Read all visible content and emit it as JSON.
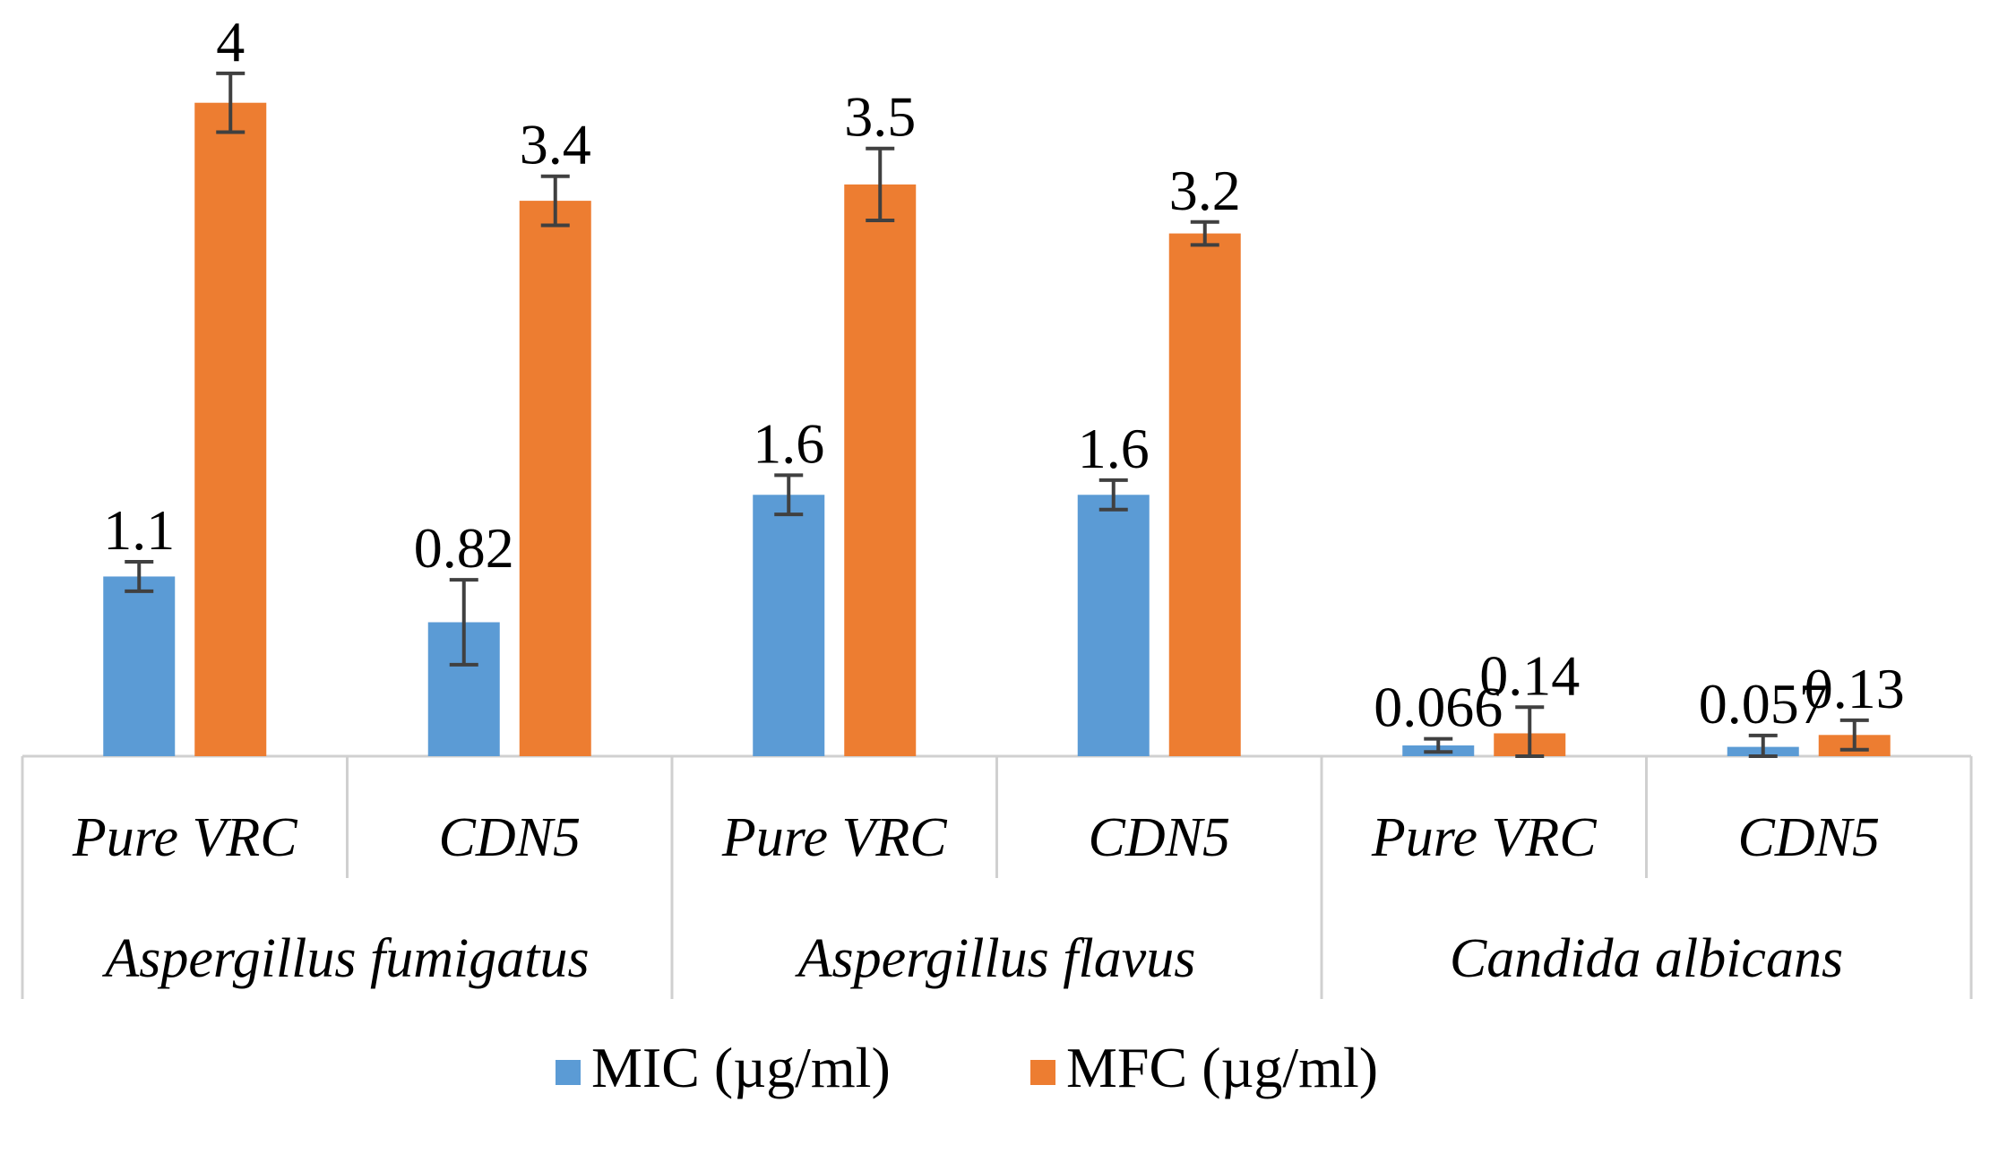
{
  "chart_data": {
    "type": "bar",
    "title": "",
    "xlabel": "",
    "ylabel": "",
    "ylim": [
      0,
      4.3
    ],
    "groups": [
      {
        "label": "Aspergillus fumigatus",
        "categories": [
          "Pure VRC",
          "CDN5"
        ]
      },
      {
        "label": "Aspergillus flavus",
        "categories": [
          "Pure VRC",
          "CDN5"
        ]
      },
      {
        "label": "Candida albicans",
        "categories": [
          "Pure VRC",
          "CDN5"
        ]
      }
    ],
    "series": [
      {
        "name": "MIC (µg/ml)",
        "color": "#5B9BD5",
        "values": [
          1.1,
          0.82,
          1.6,
          1.6,
          0.066,
          0.057
        ],
        "labels": [
          "1.1",
          "0.82",
          "1.6",
          "1.6",
          "0.066",
          "0.057"
        ],
        "errors": [
          0.09,
          0.26,
          0.12,
          0.09,
          0.04,
          0.07
        ]
      },
      {
        "name": "MFC (µg/ml)",
        "color": "#ED7D31",
        "values": [
          4,
          3.4,
          3.5,
          3.2,
          0.14,
          0.13
        ],
        "labels": [
          "4",
          "3.4",
          "3.5",
          "3.2",
          "0.14",
          "0.13"
        ],
        "errors": [
          0.18,
          0.15,
          0.22,
          0.07,
          0.16,
          0.09
        ]
      }
    ],
    "legend": "bottom"
  }
}
